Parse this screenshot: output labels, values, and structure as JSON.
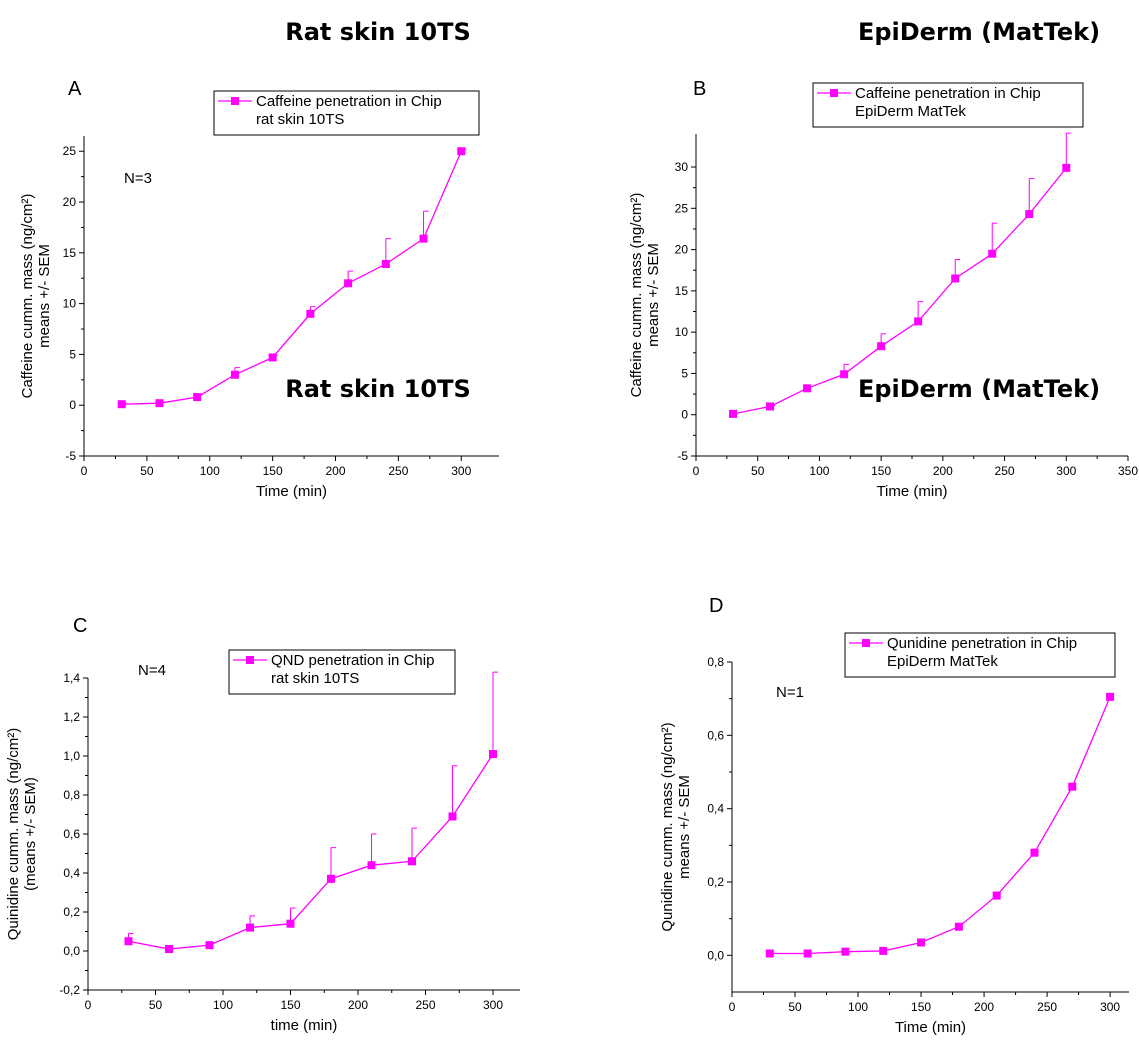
{
  "headings": {
    "top_left": "Rat skin 10TS",
    "top_right": "EpiDerm (MatTek)",
    "bottom_left": "Rat skin 10TS",
    "bottom_right": "EpiDerm (MatTek)"
  },
  "series_color": "#ff00ff",
  "chart_data": [
    {
      "type": "line",
      "panel": "A",
      "note": "N=3",
      "legend": [
        "Caffeine penetration in Chip",
        "rat skin 10TS"
      ],
      "xlabel": "Time (min)",
      "ylabel_lines": [
        "Caffeine cumm. mass (ng/cm²)",
        "means +/- SEM"
      ],
      "xlim": [
        0,
        330
      ],
      "ylim": [
        -5,
        26.5
      ],
      "xticks": [
        0,
        50,
        100,
        150,
        200,
        250,
        300
      ],
      "yticks": [
        -5,
        0,
        5,
        10,
        15,
        20,
        25
      ],
      "ytick_labels": [
        "-5",
        "0",
        "5",
        "10",
        "15",
        "20",
        "25"
      ],
      "x": [
        30,
        60,
        90,
        120,
        150,
        180,
        210,
        240,
        270,
        300
      ],
      "y": [
        0.1,
        0.2,
        0.8,
        3.0,
        4.7,
        9.0,
        12.0,
        13.9,
        16.4,
        25.0
      ],
      "err": [
        0.1,
        0.1,
        0.2,
        0.7,
        0.2,
        0.7,
        1.2,
        2.5,
        2.7,
        0.2
      ]
    },
    {
      "type": "line",
      "panel": "B",
      "note": "",
      "legend": [
        "Caffeine penetration in Chip",
        "EpiDerm MatTek"
      ],
      "xlabel": "Time (min)",
      "ylabel_lines": [
        "Caffeine cumm. mass (ng/cm²)",
        "means +/- SEM"
      ],
      "xlim": [
        0,
        350
      ],
      "ylim": [
        -5,
        34
      ],
      "xticks": [
        0,
        50,
        100,
        150,
        200,
        250,
        300,
        350
      ],
      "yticks": [
        -5,
        0,
        5,
        10,
        15,
        20,
        25,
        30
      ],
      "ytick_labels": [
        "-5",
        "0",
        "5",
        "10",
        "15",
        "20",
        "25",
        "30"
      ],
      "x": [
        30,
        60,
        90,
        120,
        150,
        180,
        210,
        240,
        270,
        300
      ],
      "y": [
        0.1,
        1.0,
        3.2,
        4.9,
        8.3,
        11.3,
        16.5,
        19.5,
        24.3,
        29.9
      ],
      "err": [
        0.1,
        0.1,
        0.2,
        1.2,
        1.5,
        2.4,
        2.3,
        3.7,
        4.3,
        4.2
      ]
    },
    {
      "type": "line",
      "panel": "C",
      "note": "N=4",
      "legend": [
        "QND penetration in Chip",
        "rat skin 10TS"
      ],
      "xlabel": "time (min)",
      "ylabel_lines": [
        "Quinidine cumm. mass (ng/cm²)",
        "(means +/- SEM)"
      ],
      "xlim": [
        0,
        320
      ],
      "ylim": [
        -0.2,
        1.4
      ],
      "xticks": [
        0,
        50,
        100,
        150,
        200,
        250,
        300
      ],
      "yticks": [
        -0.2,
        0.0,
        0.2,
        0.4,
        0.6,
        0.8,
        1.0,
        1.2,
        1.4
      ],
      "ytick_labels": [
        "-0,2",
        "0,0",
        "0,2",
        "0,4",
        "0,6",
        "0,8",
        "1,0",
        "1,2",
        "1,4"
      ],
      "x": [
        30,
        60,
        90,
        120,
        150,
        180,
        210,
        240,
        270,
        300
      ],
      "y": [
        0.05,
        0.01,
        0.03,
        0.12,
        0.14,
        0.37,
        0.44,
        0.46,
        0.69,
        1.01
      ],
      "err": [
        0.04,
        0.0,
        0.0,
        0.06,
        0.08,
        0.16,
        0.16,
        0.17,
        0.26,
        0.42
      ]
    },
    {
      "type": "line",
      "panel": "D",
      "note": "N=1",
      "legend": [
        "Qunidine penetration in Chip",
        "EpiDerm MatTek"
      ],
      "xlabel": "Time (min)",
      "ylabel_lines": [
        "Qunidine cumm. mass (ng/cm²)",
        "means +/- SEM"
      ],
      "xlim": [
        0,
        315
      ],
      "ylim": [
        -0.1,
        0.8
      ],
      "xticks": [
        0,
        50,
        100,
        150,
        200,
        250,
        300
      ],
      "yticks": [
        0.0,
        0.2,
        0.4,
        0.6,
        0.8
      ],
      "ytick_labels": [
        "0,0",
        "0,2",
        "0,4",
        "0,6",
        "0,8"
      ],
      "x": [
        30,
        60,
        90,
        120,
        150,
        180,
        210,
        240,
        270,
        300
      ],
      "y": [
        0.005,
        0.005,
        0.01,
        0.012,
        0.035,
        0.078,
        0.163,
        0.28,
        0.46,
        0.705
      ],
      "err": [
        0,
        0,
        0,
        0,
        0,
        0,
        0,
        0,
        0,
        0
      ]
    }
  ]
}
